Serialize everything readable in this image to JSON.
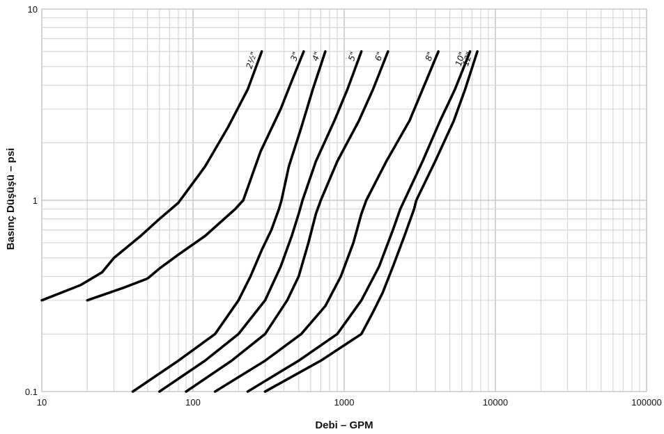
{
  "chart_data": {
    "type": "line",
    "xlabel": "Debi – GPM",
    "ylabel": "Basınç Düşüşü – psi",
    "xscale": "log",
    "yscale": "log",
    "xlim": [
      10,
      100000
    ],
    "ylim": [
      0.1,
      10
    ],
    "grid": true,
    "x_ticks": [
      "10",
      "100",
      "1000",
      "10000",
      "100000"
    ],
    "y_ticks": [
      "0.1",
      "1",
      "10"
    ],
    "series": [
      {
        "name": "2½\"",
        "points": [
          [
            10,
            0.3
          ],
          [
            18,
            0.36
          ],
          [
            25,
            0.42
          ],
          [
            30,
            0.5
          ],
          [
            45,
            0.65
          ],
          [
            60,
            0.8
          ],
          [
            80,
            0.97
          ],
          [
            120,
            1.5
          ],
          [
            170,
            2.4
          ],
          [
            230,
            3.8
          ],
          [
            285,
            6
          ]
        ]
      },
      {
        "name": "3\"",
        "points": [
          [
            20,
            0.3
          ],
          [
            35,
            0.35
          ],
          [
            50,
            0.39
          ],
          [
            60,
            0.44
          ],
          [
            80,
            0.52
          ],
          [
            120,
            0.65
          ],
          [
            190,
            0.9
          ],
          [
            215,
            1.0
          ],
          [
            280,
            1.8
          ],
          [
            380,
            3.0
          ],
          [
            450,
            4.2
          ],
          [
            540,
            6
          ]
        ]
      },
      {
        "name": "4\"",
        "points": [
          [
            40,
            0.1
          ],
          [
            80,
            0.145
          ],
          [
            140,
            0.2
          ],
          [
            200,
            0.3
          ],
          [
            240,
            0.4
          ],
          [
            285,
            0.55
          ],
          [
            330,
            0.7
          ],
          [
            370,
            0.9
          ],
          [
            385,
            1.0
          ],
          [
            430,
            1.5
          ],
          [
            520,
            2.4
          ],
          [
            620,
            3.8
          ],
          [
            750,
            6
          ]
        ]
      },
      {
        "name": "5\"",
        "points": [
          [
            60,
            0.1
          ],
          [
            120,
            0.145
          ],
          [
            200,
            0.2
          ],
          [
            300,
            0.3
          ],
          [
            380,
            0.45
          ],
          [
            450,
            0.65
          ],
          [
            500,
            0.85
          ],
          [
            530,
            1.0
          ],
          [
            650,
            1.6
          ],
          [
            860,
            2.6
          ],
          [
            1050,
            3.8
          ],
          [
            1300,
            6
          ]
        ]
      },
      {
        "name": "6\"",
        "points": [
          [
            90,
            0.1
          ],
          [
            180,
            0.145
          ],
          [
            300,
            0.2
          ],
          [
            420,
            0.3
          ],
          [
            500,
            0.4
          ],
          [
            580,
            0.6
          ],
          [
            650,
            0.85
          ],
          [
            700,
            1.0
          ],
          [
            900,
            1.6
          ],
          [
            1250,
            2.6
          ],
          [
            1550,
            3.8
          ],
          [
            1950,
            6
          ]
        ]
      },
      {
        "name": "8\"",
        "points": [
          [
            140,
            0.1
          ],
          [
            300,
            0.145
          ],
          [
            520,
            0.2
          ],
          [
            750,
            0.28
          ],
          [
            950,
            0.4
          ],
          [
            1150,
            0.6
          ],
          [
            1300,
            0.85
          ],
          [
            1400,
            1.0
          ],
          [
            1900,
            1.6
          ],
          [
            2700,
            2.6
          ],
          [
            3300,
            3.8
          ],
          [
            4200,
            6
          ]
        ]
      },
      {
        "name": "10\"",
        "points": [
          [
            230,
            0.1
          ],
          [
            500,
            0.145
          ],
          [
            900,
            0.2
          ],
          [
            1300,
            0.3
          ],
          [
            1700,
            0.45
          ],
          [
            2100,
            0.7
          ],
          [
            2350,
            0.9
          ],
          [
            2500,
            1.0
          ],
          [
            3300,
            1.6
          ],
          [
            4300,
            2.6
          ],
          [
            5400,
            3.8
          ],
          [
            6800,
            6
          ]
        ]
      },
      {
        "name": "12\"",
        "points": [
          [
            300,
            0.1
          ],
          [
            700,
            0.145
          ],
          [
            1300,
            0.2
          ],
          [
            1550,
            0.26
          ],
          [
            1800,
            0.33
          ],
          [
            2100,
            0.45
          ],
          [
            2500,
            0.65
          ],
          [
            2900,
            0.9
          ],
          [
            3000,
            1.0
          ],
          [
            4000,
            1.6
          ],
          [
            5300,
            2.6
          ],
          [
            6300,
            3.8
          ],
          [
            7600,
            6
          ]
        ]
      }
    ]
  }
}
